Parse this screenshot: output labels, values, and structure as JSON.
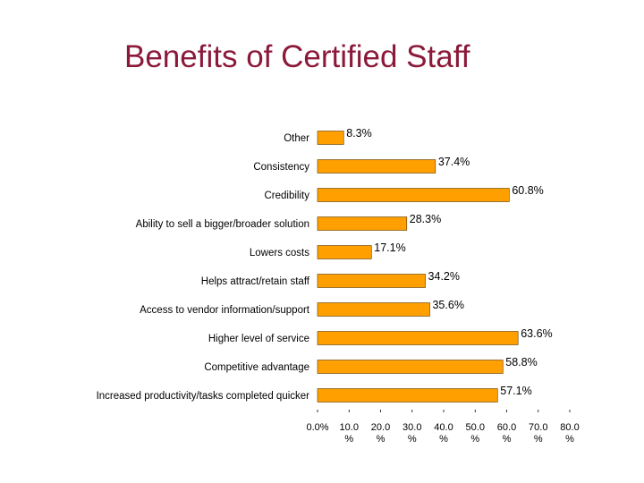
{
  "slide": {
    "title": "Benefits of Certified Staff"
  },
  "chart_data": {
    "type": "bar",
    "orientation": "horizontal",
    "title": "",
    "xlabel": "",
    "ylabel": "",
    "xlim": [
      0,
      80
    ],
    "bar_color": "#ff9f00",
    "categories": [
      "Other",
      "Consistency",
      "Credibility",
      "Ability to sell a bigger/broader solution",
      "Lowers costs",
      "Helps attract/retain staff",
      "Access to vendor information/support",
      "Higher level of service",
      "Competitive advantage",
      "Increased productivity/tasks completed quicker"
    ],
    "values": [
      8.3,
      37.4,
      60.8,
      28.3,
      17.1,
      34.2,
      35.6,
      63.6,
      58.8,
      57.1
    ],
    "value_labels": [
      "8.3%",
      "37.4%",
      "60.8%",
      "28.3%",
      "17.1%",
      "34.2%",
      "35.6%",
      "63.6%",
      "58.8%",
      "57.1%"
    ],
    "ticks": [
      0,
      10,
      20,
      30,
      40,
      50,
      60,
      70,
      80
    ],
    "tick_labels": [
      [
        "0.0%"
      ],
      [
        "10.0",
        "%"
      ],
      [
        "20.0",
        "%"
      ],
      [
        "30.0",
        "%"
      ],
      [
        "40.0",
        "%"
      ],
      [
        "50.0",
        "%"
      ],
      [
        "60.0",
        "%"
      ],
      [
        "70.0",
        "%"
      ],
      [
        "80.0",
        "%"
      ]
    ]
  }
}
